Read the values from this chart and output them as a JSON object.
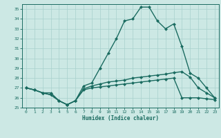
{
  "xlabel": "Humidex (Indice chaleur)",
  "xlim": [
    -0.5,
    23.5
  ],
  "ylim": [
    25,
    35.5
  ],
  "yticks": [
    25,
    26,
    27,
    28,
    29,
    30,
    31,
    32,
    33,
    34,
    35
  ],
  "xticks": [
    0,
    1,
    2,
    3,
    4,
    5,
    6,
    7,
    8,
    9,
    10,
    11,
    12,
    13,
    14,
    15,
    16,
    17,
    18,
    19,
    20,
    21,
    22,
    23
  ],
  "background_color": "#cce8e4",
  "grid_color": "#a8d0cc",
  "line_color": "#1a6b60",
  "line1_y": [
    27.0,
    26.8,
    26.5,
    26.5,
    25.7,
    25.3,
    25.7,
    27.2,
    27.5,
    29.0,
    30.5,
    32.0,
    33.8,
    34.0,
    35.2,
    35.2,
    33.8,
    33.0,
    33.5,
    31.2,
    28.5,
    28.0,
    27.0,
    26.0
  ],
  "line2_y": [
    27.0,
    26.8,
    26.5,
    26.3,
    25.7,
    25.3,
    25.7,
    26.9,
    27.2,
    27.4,
    27.6,
    27.7,
    27.8,
    28.0,
    28.1,
    28.2,
    28.3,
    28.4,
    28.55,
    28.65,
    28.1,
    27.0,
    26.5,
    26.0
  ],
  "line3_y": [
    27.0,
    26.8,
    26.5,
    26.3,
    25.7,
    25.3,
    25.7,
    26.8,
    27.0,
    27.1,
    27.2,
    27.3,
    27.4,
    27.5,
    27.6,
    27.7,
    27.8,
    27.9,
    28.0,
    26.0,
    26.0,
    26.0,
    25.9,
    25.8
  ],
  "marker_size": 2.5,
  "line_width": 1.0
}
